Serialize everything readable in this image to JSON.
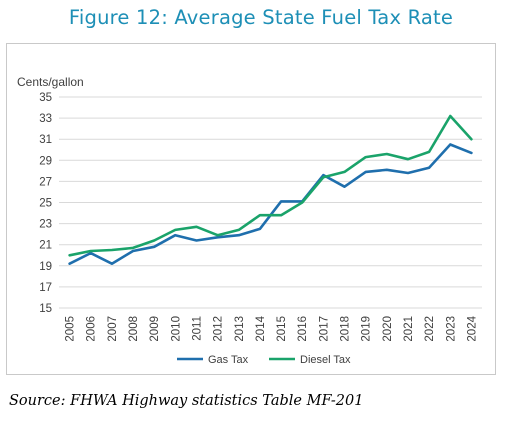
{
  "title": "Figure 12: Average State Fuel Tax Rate",
  "source": "Source: FHWA Highway statistics Table MF-201",
  "colors": {
    "title": "#1d8fb6",
    "gas": "#1f6fad",
    "diesel": "#1aa36a"
  },
  "chart_data": {
    "type": "line",
    "title": "Figure 12: Average State Fuel Tax Rate",
    "ylabel": "Cents/gallon",
    "xlabel": "",
    "ylim": [
      15,
      35
    ],
    "yticks": [
      15,
      17,
      19,
      21,
      23,
      25,
      27,
      29,
      31,
      33,
      35
    ],
    "grid": "horizontal",
    "legend": "bottom",
    "categories": [
      "2005",
      "2006",
      "2007",
      "2008",
      "2009",
      "2010",
      "2011",
      "2012",
      "2013",
      "2014",
      "2015",
      "2016",
      "2017",
      "2018",
      "2019",
      "2020",
      "2021",
      "2022",
      "2023",
      "2024"
    ],
    "series": [
      {
        "name": "Gas Tax",
        "color": "#1f6fad",
        "values": [
          19.2,
          20.2,
          19.2,
          20.4,
          20.8,
          21.9,
          21.4,
          21.7,
          21.9,
          22.5,
          25.1,
          25.1,
          27.6,
          26.5,
          27.9,
          28.1,
          27.8,
          28.3,
          30.5,
          29.7
        ]
      },
      {
        "name": "Diesel Tax",
        "color": "#1aa36a",
        "values": [
          20.0,
          20.4,
          20.5,
          20.7,
          21.4,
          22.4,
          22.7,
          21.9,
          22.4,
          23.8,
          23.8,
          25.0,
          27.4,
          27.9,
          29.3,
          29.6,
          29.1,
          29.8,
          33.2,
          31.0
        ]
      }
    ]
  }
}
